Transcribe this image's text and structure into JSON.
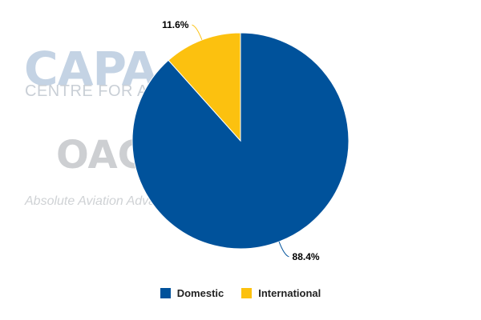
{
  "watermark": {
    "capa": "CAPA",
    "capa_sub": "CENTRE FOR AVIATION",
    "oag": "OAG",
    "oag_sub": "Absolute Aviation Advantage"
  },
  "chart_data": {
    "type": "pie",
    "title": "",
    "slices": [
      {
        "label": "Domestic",
        "value": 88.4,
        "display": "88.4%",
        "color": "#00529b"
      },
      {
        "label": "International",
        "value": 11.6,
        "display": "11.6%",
        "color": "#fcc10f"
      }
    ],
    "start_angle_deg": 0,
    "direction": "clockwise",
    "legend": "bottom-center"
  }
}
